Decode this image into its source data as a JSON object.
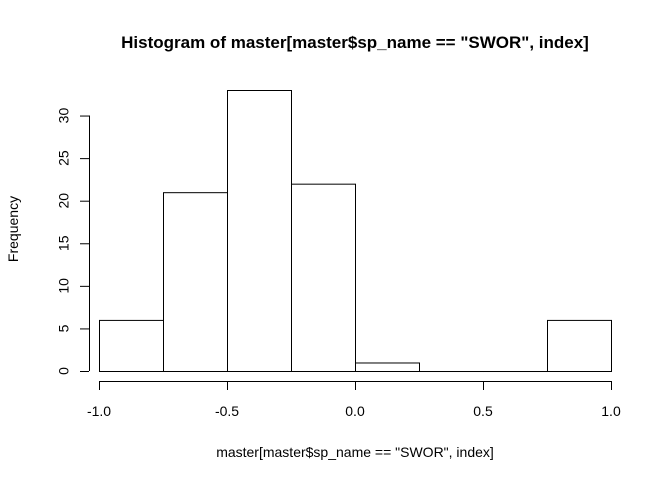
{
  "chart_data": {
    "type": "bar",
    "title": "Histogram of master[master$sp_name == \"SWOR\", index]",
    "xlabel": "master[master$sp_name == \"SWOR\", index]",
    "ylabel": "Frequency",
    "bin_edges": [
      -1.0,
      -0.75,
      -0.5,
      -0.25,
      0.0,
      0.25,
      0.5,
      0.75,
      1.0
    ],
    "values": [
      6,
      21,
      33,
      22,
      1,
      0,
      0,
      6
    ],
    "xlim": [
      -1.0,
      1.0
    ],
    "ylim": [
      0,
      33
    ],
    "x_ticks": [
      -1.0,
      -0.5,
      0.0,
      0.5,
      1.0
    ],
    "x_tick_labels": [
      "-1.0",
      "-0.5",
      "0.0",
      "0.5",
      "1.0"
    ],
    "y_ticks": [
      0,
      5,
      10,
      15,
      20,
      25,
      30
    ],
    "y_tick_labels": [
      "0",
      "5",
      "10",
      "15",
      "20",
      "25",
      "30"
    ],
    "grid": false,
    "legend": "none"
  }
}
